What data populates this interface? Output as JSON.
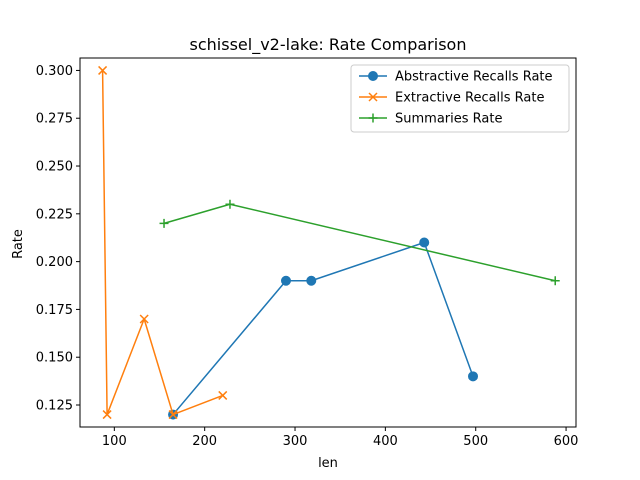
{
  "chart_data": {
    "type": "line",
    "title": "schissel_v2-lake: Rate Comparison",
    "xlabel": "len",
    "ylabel": "Rate",
    "xlim": [
      62,
      611
    ],
    "ylim": [
      0.1135,
      0.3065
    ],
    "xticks": [
      100,
      200,
      300,
      400,
      500,
      600
    ],
    "yticks": [
      0.125,
      0.15,
      0.175,
      0.2,
      0.225,
      0.25,
      0.275,
      0.3
    ],
    "ytick_labels": [
      "0.125",
      "0.150",
      "0.175",
      "0.200",
      "0.225",
      "0.250",
      "0.275",
      "0.300"
    ],
    "grid": false,
    "legend_position": "upper right",
    "series": [
      {
        "name": "Abstractive Recalls Rate",
        "color": "#1f77b4",
        "marker": "circle",
        "x": [
          165,
          290,
          318,
          443,
          497
        ],
        "y": [
          0.12,
          0.19,
          0.19,
          0.21,
          0.14
        ]
      },
      {
        "name": "Extractive Recalls Rate",
        "color": "#ff7f0e",
        "marker": "x",
        "x": [
          87,
          92,
          133,
          165,
          220
        ],
        "y": [
          0.3,
          0.12,
          0.17,
          0.12,
          0.13
        ]
      },
      {
        "name": "Summaries Rate",
        "color": "#2ca02c",
        "marker": "plus",
        "x": [
          155,
          228,
          588
        ],
        "y": [
          0.22,
          0.23,
          0.19
        ]
      }
    ]
  }
}
